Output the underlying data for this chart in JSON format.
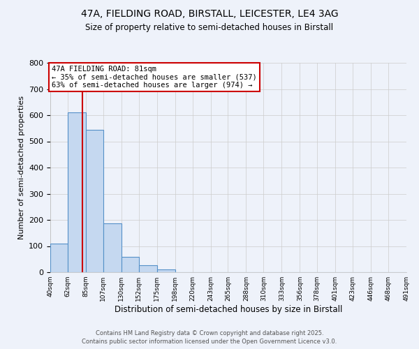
{
  "title_line1": "47A, FIELDING ROAD, BIRSTALL, LEICESTER, LE4 3AG",
  "title_line2": "Size of property relative to semi-detached houses in Birstall",
  "xlabel": "Distribution of semi-detached houses by size in Birstall",
  "ylabel": "Number of semi-detached properties",
  "bin_edges": [
    40,
    62,
    85,
    107,
    130,
    152,
    175,
    198,
    220,
    243,
    265,
    288,
    310,
    333,
    356,
    378,
    401,
    423,
    446,
    468,
    491
  ],
  "bar_heights": [
    110,
    610,
    545,
    188,
    60,
    28,
    10,
    0,
    0,
    0,
    0,
    0,
    0,
    0,
    0,
    0,
    0,
    0,
    0,
    0
  ],
  "bar_color": "#c5d8f0",
  "bar_edge_color": "#5590c8",
  "property_size": 81,
  "property_label": "47A FIELDING ROAD: 81sqm",
  "pct_smaller": 35,
  "n_smaller": 537,
  "pct_larger": 63,
  "n_larger": 974,
  "vline_color": "#cc0000",
  "annotation_box_edge_color": "#cc0000",
  "ylim": [
    0,
    800
  ],
  "yticks": [
    0,
    100,
    200,
    300,
    400,
    500,
    600,
    700,
    800
  ],
  "bg_color": "#eef2fa",
  "grid_color": "#cccccc",
  "footer_line1": "Contains HM Land Registry data © Crown copyright and database right 2025.",
  "footer_line2": "Contains public sector information licensed under the Open Government Licence v3.0."
}
